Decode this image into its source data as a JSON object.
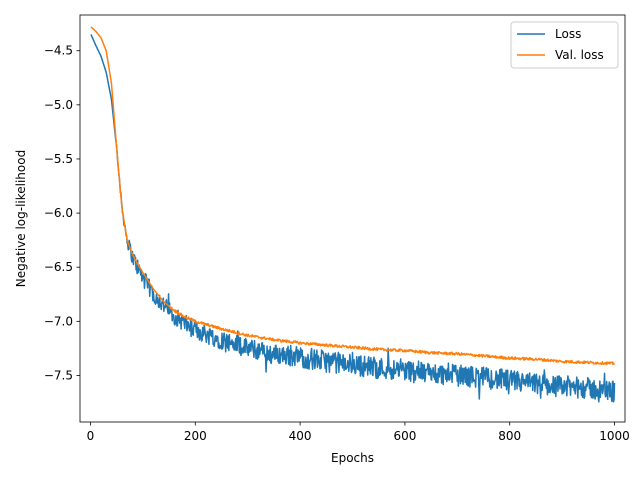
{
  "chart_data": {
    "type": "line",
    "xlabel": "Epochs",
    "ylabel": "Negative log-likelihood",
    "xlim": [
      -20,
      1020
    ],
    "ylim": [
      -7.93,
      -4.17
    ],
    "xticks": [
      0,
      200,
      400,
      600,
      800,
      1000
    ],
    "yticks": [
      -4.5,
      -5.0,
      -5.5,
      -6.0,
      -6.5,
      -7.0,
      -7.5
    ],
    "xtick_labels": [
      "0",
      "200",
      "400",
      "600",
      "800",
      "1000"
    ],
    "ytick_labels": [
      "−4.5",
      "−5.0",
      "−5.5",
      "−6.0",
      "−6.5",
      "−7.0",
      "−7.5"
    ],
    "grid": false,
    "legend_position": "top-right",
    "series": [
      {
        "name": "Loss",
        "color": "#1f77b4",
        "noisy": true,
        "x": [
          1,
          10,
          20,
          30,
          40,
          50,
          60,
          70,
          80,
          90,
          100,
          120,
          140,
          160,
          180,
          200,
          250,
          300,
          350,
          400,
          450,
          500,
          550,
          600,
          650,
          700,
          750,
          800,
          850,
          900,
          950,
          1000
        ],
        "values": [
          -4.35,
          -4.45,
          -4.55,
          -4.7,
          -4.95,
          -5.4,
          -5.95,
          -6.25,
          -6.4,
          -6.5,
          -6.6,
          -6.75,
          -6.85,
          -6.95,
          -7.02,
          -7.08,
          -7.17,
          -7.25,
          -7.3,
          -7.33,
          -7.37,
          -7.4,
          -7.43,
          -7.45,
          -7.48,
          -7.5,
          -7.52,
          -7.55,
          -7.58,
          -7.6,
          -7.62,
          -7.65
        ],
        "noise_amplitude": [
          0.0,
          0.0,
          0.0,
          0.0,
          0.0,
          0.01,
          0.04,
          0.06,
          0.07,
          0.08,
          0.08,
          0.08,
          0.08,
          0.08,
          0.08,
          0.09,
          0.09,
          0.09,
          0.09,
          0.1,
          0.1,
          0.1,
          0.1,
          0.1,
          0.1,
          0.1,
          0.1,
          0.1,
          0.1,
          0.1,
          0.1,
          0.1
        ]
      },
      {
        "name": "Val. loss",
        "color": "#ff7f0e",
        "noisy": false,
        "x": [
          1,
          10,
          20,
          30,
          40,
          50,
          60,
          70,
          80,
          90,
          100,
          120,
          140,
          160,
          180,
          200,
          250,
          300,
          350,
          400,
          450,
          500,
          550,
          600,
          650,
          700,
          750,
          800,
          850,
          900,
          950,
          1000
        ],
        "values": [
          -4.28,
          -4.32,
          -4.38,
          -4.5,
          -4.8,
          -5.4,
          -5.95,
          -6.25,
          -6.38,
          -6.47,
          -6.55,
          -6.7,
          -6.82,
          -6.9,
          -6.96,
          -7.0,
          -7.07,
          -7.13,
          -7.17,
          -7.2,
          -7.22,
          -7.24,
          -7.26,
          -7.27,
          -7.29,
          -7.3,
          -7.32,
          -7.34,
          -7.35,
          -7.37,
          -7.38,
          -7.39
        ]
      }
    ]
  }
}
